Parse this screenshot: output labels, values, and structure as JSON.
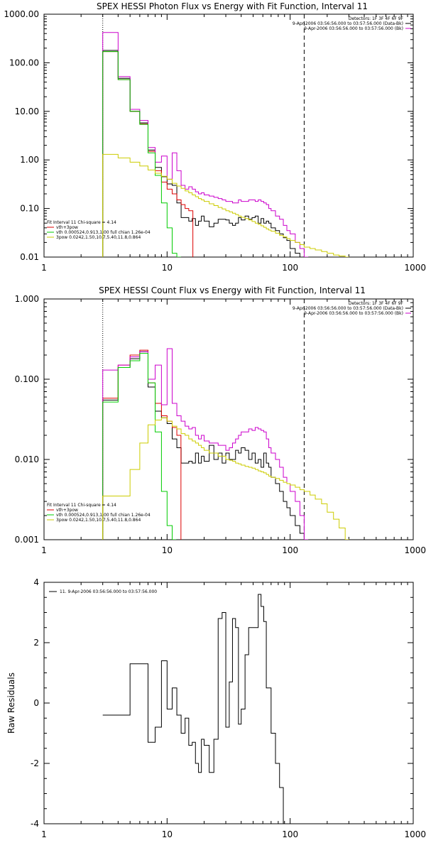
{
  "chart_data": [
    {
      "type": "line",
      "title": "SPEX HESSI Photon Flux vs Energy with Fit Function, Interval 11",
      "ylabel": "",
      "xlabel": "",
      "xscale": "log",
      "yscale": "log",
      "xlim": [
        1,
        1000
      ],
      "ylim": [
        0.01,
        1000
      ],
      "xticks": [
        "1",
        "10",
        "100",
        "1000"
      ],
      "yticks": [
        "1000.00",
        "100.00",
        "10.00",
        "1.00",
        "0.10",
        "0.01"
      ],
      "ytick_values": [
        1000,
        100,
        10,
        1,
        0.1,
        0.01
      ],
      "vlines": [
        {
          "x": 3,
          "style": "dotted"
        },
        {
          "x": 130,
          "style": "dashed"
        }
      ],
      "legend_topright": [
        {
          "text": "Detectors: 1F 3F 4F 6F 9F",
          "color": ""
        },
        {
          "text": "9-Apr-2006 03:56:56.000 to 03:57:56.000 (Data-Bk)",
          "color": "#000000"
        },
        {
          "text": "9-Apr-2006 03:56:56.000 to 03:57:56.000 (Bk)",
          "color": "#cc00cc"
        }
      ],
      "legend_bottomleft": [
        {
          "text": "Fit Interval 11    Chi-square = 4.14",
          "color": ""
        },
        {
          "text": "vth+3pow",
          "color": "#dd0000"
        },
        {
          "text": "vth 0.000524,0.913,1.00  full chian 1.26e-04",
          "color": "#00cc00"
        },
        {
          "text": "3pow 0.0242,1.50,10.7,5.40,11.8,0.864",
          "color": "#cccc00"
        }
      ],
      "series": [
        {
          "color": "#000000",
          "x": [
            3,
            4,
            5,
            6,
            7,
            8,
            9,
            10,
            11,
            12,
            13,
            14,
            15,
            16,
            17,
            18,
            19,
            20,
            22,
            24,
            26,
            28,
            30,
            32,
            34,
            36,
            38,
            40,
            43,
            46,
            49,
            52,
            55,
            58,
            61,
            64,
            67,
            70,
            76,
            82,
            88,
            94,
            100,
            110,
            120,
            130
          ],
          "values": [
            180,
            48,
            10,
            5.8,
            1.6,
            0.7,
            0.45,
            0.32,
            0.3,
            0.13,
            0.065,
            0.065,
            0.055,
            0.062,
            0.045,
            0.055,
            0.07,
            0.055,
            0.042,
            0.05,
            0.06,
            0.06,
            0.058,
            0.05,
            0.045,
            0.05,
            0.065,
            0.058,
            0.07,
            0.06,
            0.065,
            0.07,
            0.05,
            0.062,
            0.05,
            0.055,
            0.05,
            0.04,
            0.035,
            0.03,
            0.025,
            0.022,
            0.015,
            0.012,
            0.01,
            0.01
          ]
        },
        {
          "color": "#dd0000",
          "x": [
            3,
            4,
            5,
            6,
            7,
            8,
            9,
            10,
            11,
            12,
            13,
            14,
            15
          ],
          "values": [
            170,
            45,
            10,
            5.5,
            1.5,
            0.6,
            0.35,
            0.25,
            0.2,
            0.15,
            0.12,
            0.1,
            0.09
          ]
        },
        {
          "color": "#cc00cc",
          "x": [
            3,
            4,
            5,
            6,
            7,
            8,
            9,
            10,
            11,
            12,
            13,
            14,
            15,
            16,
            17,
            18,
            19,
            20,
            22,
            24,
            26,
            28,
            30,
            32,
            34,
            36,
            38,
            40,
            43,
            46,
            49,
            52,
            55,
            58,
            61,
            64,
            67,
            70,
            76,
            82,
            88,
            94,
            100,
            110,
            120,
            130
          ],
          "values": [
            420,
            52,
            11,
            6.5,
            1.8,
            0.9,
            1.2,
            0.4,
            1.4,
            0.6,
            0.3,
            0.25,
            0.28,
            0.25,
            0.22,
            0.2,
            0.21,
            0.19,
            0.18,
            0.17,
            0.16,
            0.15,
            0.14,
            0.14,
            0.13,
            0.13,
            0.15,
            0.14,
            0.14,
            0.15,
            0.15,
            0.14,
            0.15,
            0.14,
            0.13,
            0.12,
            0.1,
            0.09,
            0.07,
            0.06,
            0.045,
            0.035,
            0.03,
            0.02,
            0.015,
            0.01
          ]
        },
        {
          "color": "#00cc00",
          "x": [
            3,
            4,
            5,
            6,
            7,
            8,
            9,
            10,
            11,
            12
          ],
          "values": [
            170,
            45,
            10,
            5.4,
            1.4,
            0.48,
            0.13,
            0.04,
            0.012,
            0.01
          ]
        },
        {
          "color": "#cccc00",
          "x": [
            3,
            4,
            5,
            6,
            7,
            8,
            9,
            10,
            11,
            12,
            13,
            14,
            15,
            16,
            17,
            18,
            19,
            20,
            22,
            24,
            26,
            28,
            30,
            32,
            34,
            36,
            38,
            40,
            43,
            46,
            49,
            52,
            55,
            58,
            61,
            64,
            67,
            70,
            76,
            82,
            88,
            94,
            100,
            110,
            120,
            130,
            145,
            160,
            180,
            200,
            225,
            250,
            280
          ],
          "values": [
            1.3,
            1.1,
            0.9,
            0.75,
            0.62,
            0.53,
            0.46,
            0.4,
            0.33,
            0.29,
            0.26,
            0.23,
            0.21,
            0.19,
            0.175,
            0.16,
            0.15,
            0.14,
            0.125,
            0.115,
            0.105,
            0.098,
            0.09,
            0.085,
            0.08,
            0.075,
            0.07,
            0.066,
            0.062,
            0.058,
            0.054,
            0.05,
            0.047,
            0.044,
            0.041,
            0.038,
            0.036,
            0.034,
            0.031,
            0.028,
            0.026,
            0.024,
            0.022,
            0.02,
            0.018,
            0.016,
            0.015,
            0.014,
            0.013,
            0.012,
            0.011,
            0.0105,
            0.01
          ]
        }
      ]
    },
    {
      "type": "line",
      "title": "SPEX HESSI Count Flux vs Energy with Fit Function, Interval 11",
      "ylabel": "",
      "xlabel": "",
      "xscale": "log",
      "yscale": "log",
      "xlim": [
        1,
        1000
      ],
      "ylim": [
        0.001,
        1
      ],
      "xticks": [
        "1",
        "10",
        "100",
        "1000"
      ],
      "yticks": [
        "1.000",
        "0.100",
        "0.010",
        "0.001"
      ],
      "ytick_values": [
        1,
        0.1,
        0.01,
        0.001
      ],
      "vlines": [
        {
          "x": 3,
          "style": "dotted"
        },
        {
          "x": 130,
          "style": "dashed"
        }
      ],
      "legend_topright": [
        {
          "text": "Detectors: 1F 3F 4F 6F 9F",
          "color": ""
        },
        {
          "text": "9-Apr-2006 03:56:56.000 to 03:57:56.000 (Data-Bk)",
          "color": "#000000"
        },
        {
          "text": "9-Apr-2006 03:56:56.000 to 03:57:56.000 (Bk)",
          "color": "#cc00cc"
        }
      ],
      "legend_bottomleft": [
        {
          "text": "Fit Interval 11    Chi-square = 4.14",
          "color": ""
        },
        {
          "text": "vth+3pow",
          "color": "#dd0000"
        },
        {
          "text": "vth 0.000524,0.913,1.00  full chian 1.26e-04",
          "color": "#00cc00"
        },
        {
          "text": "3pow 0.0242,1.50,10.7,5.40,11.8,0.864",
          "color": "#cccc00"
        }
      ],
      "series": [
        {
          "color": "#000000",
          "x": [
            3,
            4,
            5,
            6,
            7,
            8,
            9,
            10,
            11,
            12,
            13,
            14,
            15,
            16,
            17,
            18,
            19,
            20,
            22,
            24,
            26,
            28,
            30,
            32,
            34,
            36,
            38,
            40,
            43,
            46,
            49,
            52,
            55,
            58,
            61,
            64,
            67,
            70,
            76,
            82,
            88,
            94,
            100,
            110,
            120,
            130
          ],
          "values": [
            0.055,
            0.14,
            0.18,
            0.22,
            0.08,
            0.04,
            0.033,
            0.028,
            0.018,
            0.014,
            0.009,
            0.009,
            0.0095,
            0.009,
            0.012,
            0.009,
            0.011,
            0.0095,
            0.015,
            0.01,
            0.012,
            0.009,
            0.012,
            0.01,
            0.01,
            0.013,
            0.012,
            0.014,
            0.013,
            0.01,
            0.012,
            0.009,
            0.01,
            0.008,
            0.012,
            0.009,
            0.008,
            0.006,
            0.005,
            0.004,
            0.003,
            0.0025,
            0.002,
            0.0015,
            0.0012,
            0.001
          ]
        },
        {
          "color": "#dd0000",
          "x": [
            3,
            4,
            5,
            6,
            7,
            8,
            9,
            10,
            11,
            12
          ],
          "values": [
            0.058,
            0.15,
            0.2,
            0.23,
            0.09,
            0.05,
            0.035,
            0.03,
            0.025,
            0.02
          ]
        },
        {
          "color": "#cc00cc",
          "x": [
            3,
            4,
            5,
            6,
            7,
            8,
            9,
            10,
            11,
            12,
            13,
            14,
            15,
            16,
            17,
            18,
            19,
            20,
            22,
            24,
            26,
            28,
            30,
            32,
            34,
            36,
            38,
            40,
            43,
            46,
            49,
            52,
            55,
            58,
            61,
            64,
            67,
            70,
            76,
            82,
            88,
            94,
            100,
            110,
            120,
            130
          ],
          "values": [
            0.13,
            0.15,
            0.19,
            0.22,
            0.1,
            0.15,
            0.048,
            0.24,
            0.05,
            0.035,
            0.03,
            0.026,
            0.024,
            0.025,
            0.02,
            0.018,
            0.02,
            0.017,
            0.016,
            0.016,
            0.015,
            0.015,
            0.013,
            0.014,
            0.016,
            0.018,
            0.02,
            0.022,
            0.022,
            0.024,
            0.023,
            0.025,
            0.024,
            0.023,
            0.022,
            0.018,
            0.014,
            0.012,
            0.01,
            0.008,
            0.006,
            0.005,
            0.004,
            0.003,
            0.002,
            0.001
          ]
        },
        {
          "color": "#00cc00",
          "x": [
            3,
            4,
            5,
            6,
            7,
            8,
            9,
            10,
            11
          ],
          "values": [
            0.052,
            0.14,
            0.17,
            0.21,
            0.09,
            0.022,
            0.004,
            0.0015,
            0.001
          ]
        },
        {
          "color": "#cccc00",
          "x": [
            3,
            4,
            5,
            6,
            7,
            8,
            9,
            10,
            11,
            12,
            13,
            14,
            15,
            16,
            17,
            18,
            19,
            20,
            22,
            24,
            26,
            28,
            30,
            32,
            34,
            36,
            38,
            40,
            43,
            46,
            49,
            52,
            55,
            58,
            61,
            64,
            67,
            70,
            76,
            82,
            88,
            94,
            100,
            110,
            120,
            130,
            145,
            160,
            180,
            200,
            225,
            250,
            280
          ],
          "values": [
            0.0035,
            0.0035,
            0.0075,
            0.016,
            0.027,
            0.031,
            0.033,
            0.03,
            0.026,
            0.024,
            0.021,
            0.02,
            0.018,
            0.017,
            0.016,
            0.015,
            0.014,
            0.013,
            0.012,
            0.012,
            0.011,
            0.011,
            0.01,
            0.0098,
            0.0095,
            0.009,
            0.0088,
            0.0085,
            0.0082,
            0.008,
            0.0078,
            0.0075,
            0.0072,
            0.007,
            0.0068,
            0.0065,
            0.0062,
            0.006,
            0.0058,
            0.0055,
            0.0052,
            0.005,
            0.0048,
            0.0045,
            0.0042,
            0.004,
            0.0036,
            0.0032,
            0.0028,
            0.0022,
            0.0018,
            0.0014,
            0.001
          ]
        }
      ]
    },
    {
      "type": "line",
      "title": "",
      "ylabel": "Raw Residuals",
      "xlabel": "",
      "xscale": "log",
      "yscale": "linear",
      "xlim": [
        1,
        1000
      ],
      "ylim": [
        -4,
        4
      ],
      "xticks": [
        "1",
        "10",
        "100",
        "1000"
      ],
      "yticks": [
        "4",
        "2",
        "0",
        "-2",
        "-4"
      ],
      "ytick_values": [
        4,
        2,
        0,
        -2,
        -4
      ],
      "vlines": [],
      "legend_topleft": [
        {
          "text": "11.  9-Apr-2006 03:56:56.000 to 03:57:56.000",
          "color": "#000000"
        }
      ],
      "series": [
        {
          "color": "#000000",
          "x": [
            3,
            4,
            5,
            6,
            7,
            8,
            9,
            10,
            11,
            12,
            13,
            14,
            15,
            16,
            17,
            18,
            19,
            20,
            22,
            24,
            26,
            28,
            30,
            32,
            34,
            36,
            38,
            40,
            43,
            46,
            49,
            52,
            55,
            58,
            61,
            64,
            67,
            70,
            76,
            82,
            88,
            94,
            100,
            110,
            120,
            130
          ],
          "values": [
            -0.4,
            -0.4,
            1.3,
            1.3,
            -1.3,
            -0.8,
            1.4,
            -0.2,
            0.5,
            -0.4,
            -1.0,
            -0.5,
            -1.4,
            -1.3,
            -2.0,
            -2.3,
            -1.2,
            -1.4,
            -2.3,
            -1.2,
            2.8,
            3.0,
            -0.8,
            0.7,
            2.8,
            2.5,
            -0.7,
            -0.2,
            1.6,
            2.5,
            2.5,
            2.5,
            3.6,
            3.2,
            2.7,
            0.5,
            0.5,
            -1.0,
            -2.0,
            -2.8,
            -4.0,
            -4.0,
            -4.0,
            -4.0,
            -4.0,
            -4.0
          ]
        }
      ]
    }
  ]
}
